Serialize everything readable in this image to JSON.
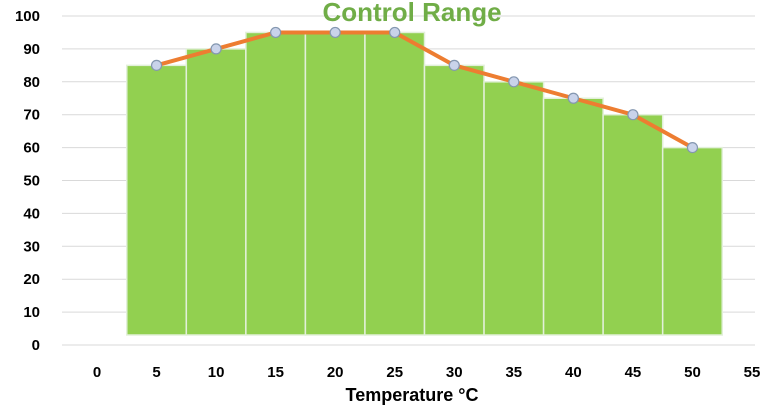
{
  "chart_data": {
    "type": "bar",
    "title": "Control Range",
    "xlabel": "Temperature °C",
    "ylabel": "",
    "ylim": [
      0,
      100
    ],
    "y_ticks": [
      "0",
      "10",
      "20",
      "30",
      "40",
      "50",
      "60",
      "70",
      "80",
      "90",
      "100"
    ],
    "x_ticks": [
      "0",
      "5",
      "10",
      "15",
      "20",
      "25",
      "30",
      "35",
      "40",
      "45",
      "50",
      "55"
    ],
    "x_range": [
      0,
      55
    ],
    "categories": [
      5,
      10,
      15,
      20,
      25,
      30,
      35,
      40,
      45,
      50
    ],
    "series": [
      {
        "type": "bar",
        "values": [
          85,
          90,
          95,
          95,
          95,
          85,
          80,
          75,
          70,
          60
        ]
      },
      {
        "type": "line",
        "values": [
          85,
          90,
          95,
          95,
          95,
          85,
          80,
          75,
          70,
          60
        ]
      }
    ],
    "grid": true,
    "legend": "none",
    "colors": {
      "bar": "#92d050",
      "bar_edge": "#e2f0d9",
      "line": "#ed7d31",
      "marker": "#c9d3ea",
      "marker_edge": "#8497b0",
      "title": "#70ad47",
      "grid": "#d9d9d9"
    }
  }
}
